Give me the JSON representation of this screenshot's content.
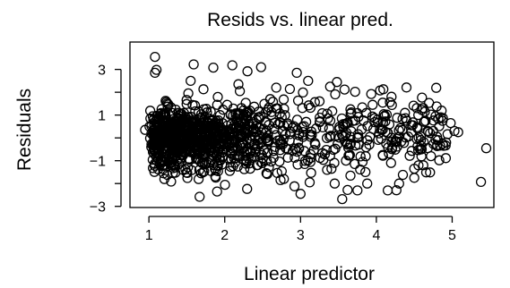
{
  "chart_data": {
    "type": "scatter",
    "title": "Resids vs. linear pred.",
    "xlabel": "Linear predictor",
    "ylabel": "Residuals",
    "xlim": [
      0.75,
      5.55
    ],
    "ylim": [
      -3.05,
      4.2
    ],
    "x_ticks": [
      1,
      2,
      3,
      4,
      5
    ],
    "x_tick_labels": [
      "1",
      "2",
      "3",
      "4",
      "5"
    ],
    "y_ticks": [
      -3,
      -2,
      -1,
      0,
      1,
      2,
      3
    ],
    "y_tick_labels": [
      "−3",
      "",
      "−1",
      "",
      "1",
      "",
      "3"
    ],
    "grid": false,
    "legend": "none",
    "marker": "open-circle",
    "color": "#000000",
    "points": [
      [
        1.08,
        3.55
      ],
      [
        1.1,
        2.98
      ],
      [
        1.08,
        2.85
      ],
      [
        1.59,
        3.22
      ],
      [
        1.85,
        3.08
      ],
      [
        2.1,
        3.18
      ],
      [
        2.3,
        2.92
      ],
      [
        2.48,
        3.1
      ],
      [
        2.95,
        2.85
      ],
      [
        3.1,
        2.5
      ],
      [
        1.55,
        2.5
      ],
      [
        2.18,
        2.35
      ],
      [
        3.48,
        2.45
      ],
      [
        3.58,
        2.12
      ],
      [
        3.72,
        2.02
      ],
      [
        4.05,
        2.08
      ],
      [
        4.2,
        1.8
      ],
      [
        3.25,
        1.6
      ],
      [
        2.6,
        1.7
      ],
      [
        1.52,
        1.95
      ],
      [
        4.6,
        1.22
      ],
      [
        4.72,
        1.02
      ],
      [
        4.85,
        0.9
      ],
      [
        4.98,
        0.65
      ],
      [
        5.03,
        0.3
      ],
      [
        5.08,
        0.25
      ],
      [
        5.45,
        -0.45
      ],
      [
        5.38,
        -1.93
      ],
      [
        4.62,
        -1.2
      ],
      [
        4.5,
        -1.35
      ],
      [
        4.35,
        -1.62
      ],
      [
        4.5,
        -1.75
      ],
      [
        4.3,
        -2.0
      ],
      [
        4.15,
        -2.3
      ],
      [
        3.88,
        -2.0
      ],
      [
        3.75,
        -2.3
      ],
      [
        3.62,
        -2.28
      ],
      [
        3.55,
        -2.68
      ],
      [
        3.45,
        -2.0
      ],
      [
        3.12,
        -1.95
      ],
      [
        2.92,
        -2.12
      ],
      [
        3.0,
        -2.45
      ],
      [
        2.78,
        -1.8
      ],
      [
        2.55,
        -1.55
      ],
      [
        1.9,
        -1.2
      ],
      [
        1.35,
        -0.5
      ],
      [
        0.95,
        0.35
      ],
      [
        1.02,
        0.85
      ],
      [
        1.22,
        1.62
      ],
      [
        1.9,
        1.45
      ],
      [
        2.2,
        2.05
      ],
      [
        2.68,
        2.2
      ],
      [
        4.72,
        -0.8
      ],
      [
        4.92,
        -0.2
      ],
      [
        4.8,
        0.05
      ],
      [
        4.4,
        0.75
      ],
      [
        3.95,
        1.45
      ],
      [
        3.35,
        -1.4
      ],
      [
        2.05,
        -0.9
      ],
      [
        1.7,
        -1.1
      ]
    ],
    "cloud": {
      "note": "dense central cloud of residuals",
      "x_range": [
        1.0,
        4.95
      ],
      "y_center": 0.0,
      "y_spread": 0.75,
      "count": 1150
    }
  }
}
